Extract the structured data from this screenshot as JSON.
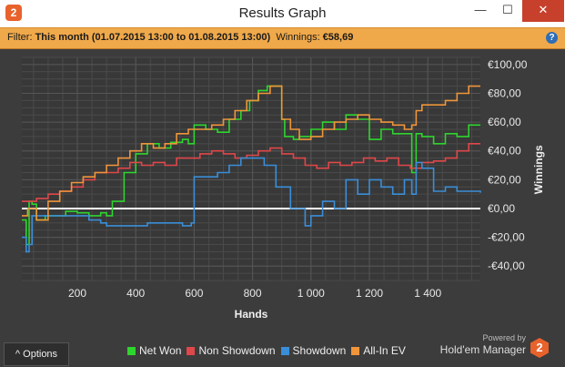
{
  "window": {
    "title": "Results Graph",
    "app_icon": "hem2-logo-icon",
    "minimize": "—",
    "maximize": "☐",
    "close": "✕"
  },
  "filter": {
    "label": "Filter:",
    "value": "This month (01.07.2015 13:00 to 01.08.2015 13:00)",
    "winnings_label": "Winnings:",
    "winnings_value": "€58,69",
    "help": "?"
  },
  "footer": {
    "options_label": "^  Options",
    "powered_by": "Powered by",
    "brand": "Hold'em Manager",
    "brand_logo": "2"
  },
  "colors": {
    "net_won": "#2ed52e",
    "non_showdown": "#e0474a",
    "showdown": "#3a8ed8",
    "all_in_ev": "#f0953a",
    "background": "#3c3c3c",
    "grid": "#565656"
  },
  "chart_data": {
    "type": "line",
    "title": "",
    "xlabel": "Hands",
    "ylabel": "Winnings",
    "xlim": [
      10,
      1580
    ],
    "ylim": [
      -50,
      105
    ],
    "x_ticks": [
      200,
      400,
      600,
      800,
      1000,
      1200,
      1400
    ],
    "x_tick_labels": [
      "200",
      "400",
      "600",
      "800",
      "1 000",
      "1 200",
      "1 400"
    ],
    "y_ticks": [
      -40,
      -20,
      0,
      20,
      40,
      60,
      80,
      100
    ],
    "y_tick_labels": [
      "-€40,00",
      "-€20,00",
      "€0,00",
      "€20,00",
      "€40,00",
      "€60,00",
      "€80,00",
      "€100,00"
    ],
    "grid": true,
    "y_axis_position": "right",
    "legend_position": "bottom",
    "series": [
      {
        "name": "Net Won",
        "color": "#2ed52e",
        "x": [
          10,
          25,
          35,
          45,
          60,
          90,
          120,
          160,
          200,
          240,
          280,
          300,
          320,
          360,
          400,
          440,
          480,
          520,
          560,
          580,
          600,
          640,
          680,
          720,
          760,
          790,
          820,
          850,
          880,
          900,
          910,
          940,
          960,
          1000,
          1040,
          1080,
          1120,
          1160,
          1200,
          1240,
          1280,
          1320,
          1345,
          1360,
          1380,
          1420,
          1460,
          1500,
          1540,
          1580
        ],
        "y": [
          -8,
          -25,
          5,
          3,
          -8,
          -5,
          -5,
          -2,
          -3,
          -5,
          -3,
          -5,
          5,
          25,
          38,
          45,
          42,
          46,
          48,
          45,
          58,
          55,
          53,
          62,
          68,
          75,
          82,
          85,
          85,
          62,
          50,
          48,
          50,
          55,
          60,
          55,
          65,
          62,
          48,
          55,
          52,
          52,
          25,
          52,
          50,
          45,
          52,
          50,
          58,
          58
        ]
      },
      {
        "name": "Non Showdown",
        "color": "#e0474a",
        "x": [
          10,
          30,
          60,
          100,
          140,
          180,
          220,
          260,
          300,
          340,
          380,
          420,
          460,
          500,
          540,
          580,
          620,
          660,
          700,
          740,
          780,
          820,
          860,
          900,
          940,
          980,
          1020,
          1060,
          1100,
          1140,
          1180,
          1220,
          1260,
          1300,
          1340,
          1380,
          1420,
          1460,
          1500,
          1540,
          1580
        ],
        "y": [
          5,
          5,
          7,
          10,
          12,
          15,
          20,
          25,
          25,
          28,
          32,
          30,
          32,
          30,
          35,
          35,
          38,
          40,
          38,
          35,
          37,
          40,
          42,
          38,
          35,
          30,
          28,
          32,
          30,
          32,
          35,
          33,
          35,
          30,
          28,
          32,
          33,
          35,
          40,
          45,
          45
        ]
      },
      {
        "name": "Showdown",
        "color": "#3a8ed8",
        "x": [
          10,
          25,
          35,
          45,
          60,
          120,
          200,
          240,
          280,
          300,
          340,
          360,
          400,
          440,
          500,
          560,
          590,
          600,
          640,
          680,
          720,
          760,
          800,
          840,
          880,
          900,
          930,
          960,
          980,
          1000,
          1040,
          1080,
          1120,
          1160,
          1200,
          1240,
          1280,
          1320,
          1345,
          1360,
          1380,
          1420,
          1460,
          1500,
          1540,
          1580
        ],
        "y": [
          -20,
          -30,
          -25,
          -5,
          -5,
          -5,
          -5,
          -8,
          -10,
          -12,
          -12,
          -12,
          -12,
          -10,
          -10,
          -12,
          -10,
          22,
          22,
          25,
          30,
          35,
          35,
          30,
          15,
          15,
          0,
          0,
          -12,
          -5,
          5,
          0,
          20,
          10,
          20,
          15,
          10,
          20,
          10,
          32,
          28,
          12,
          15,
          12,
          12,
          11
        ]
      },
      {
        "name": "All-In EV",
        "color": "#f0953a",
        "x": [
          10,
          30,
          60,
          100,
          140,
          180,
          220,
          260,
          300,
          340,
          380,
          420,
          460,
          500,
          540,
          580,
          620,
          660,
          700,
          740,
          780,
          820,
          860,
          900,
          930,
          960,
          1000,
          1040,
          1080,
          1120,
          1160,
          1200,
          1240,
          1280,
          1320,
          1345,
          1360,
          1380,
          1420,
          1460,
          1500,
          1540,
          1580
        ],
        "y": [
          -5,
          0,
          -8,
          5,
          12,
          18,
          22,
          25,
          30,
          35,
          40,
          45,
          42,
          45,
          52,
          55,
          55,
          58,
          62,
          68,
          75,
          80,
          85,
          62,
          55,
          48,
          50,
          55,
          60,
          62,
          65,
          62,
          60,
          58,
          55,
          58,
          68,
          72,
          72,
          75,
          80,
          85,
          85
        ]
      }
    ]
  }
}
